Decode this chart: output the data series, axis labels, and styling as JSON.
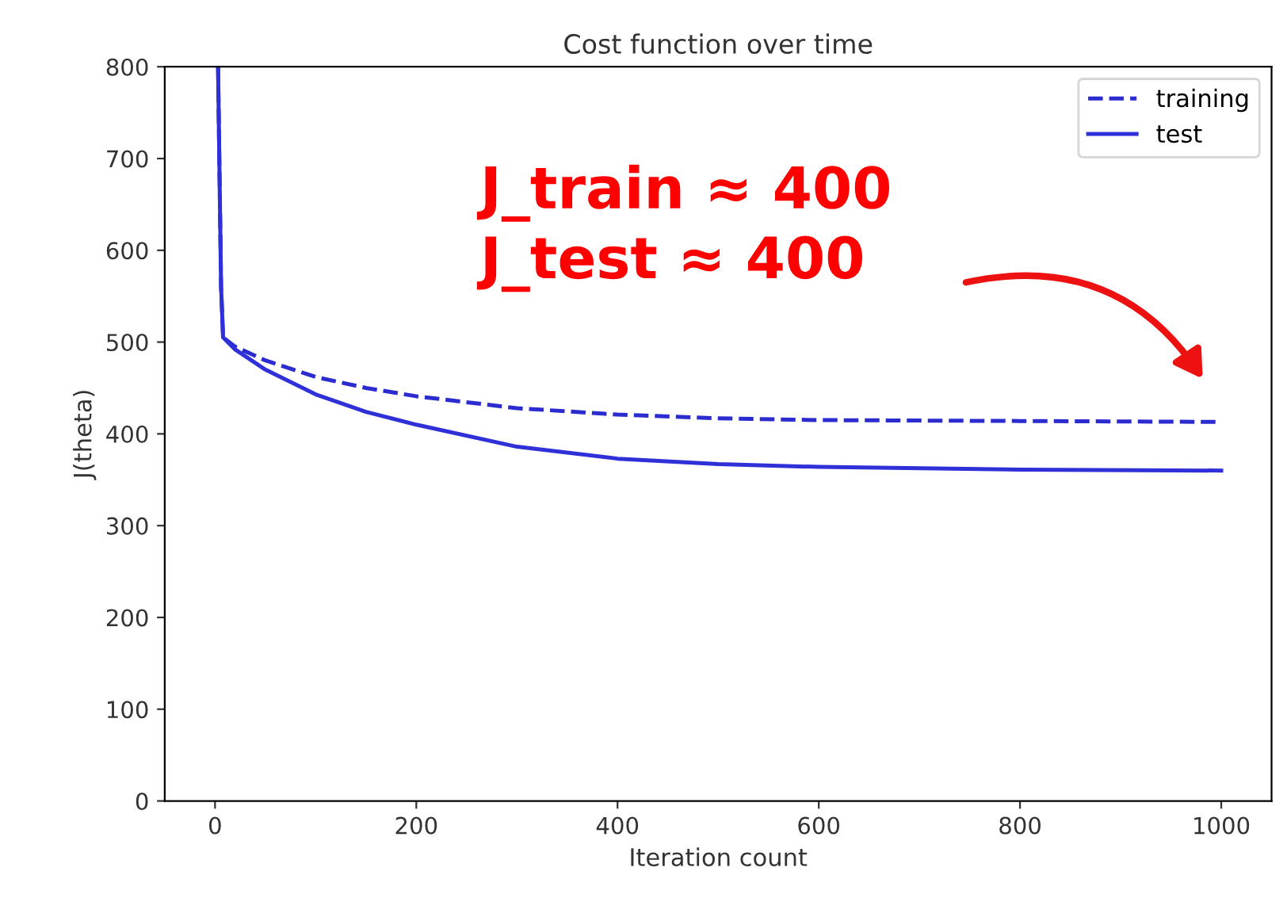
{
  "chart_data": {
    "type": "line",
    "title": "Cost function over time",
    "xlabel": "Iteration count",
    "ylabel": "J(theta)",
    "xlim": [
      -50,
      1050
    ],
    "ylim": [
      0,
      800
    ],
    "xticks": [
      0,
      200,
      400,
      600,
      800,
      1000
    ],
    "yticks": [
      0,
      100,
      200,
      300,
      400,
      500,
      600,
      700,
      800
    ],
    "grid": false,
    "legend": "top right",
    "series": [
      {
        "name": "training",
        "color": "#2b2bd0",
        "line_style": "dashed",
        "x": [
          3,
          6,
          8,
          20,
          50,
          100,
          150,
          200,
          300,
          400,
          500,
          600,
          800,
          1000
        ],
        "values": [
          800,
          560,
          505,
          495,
          480,
          462,
          450,
          441,
          428,
          421,
          417,
          415,
          414,
          413
        ]
      },
      {
        "name": "test",
        "color": "#3030d8",
        "line_style": "solid",
        "x": [
          3,
          6,
          8,
          20,
          50,
          100,
          150,
          200,
          300,
          400,
          500,
          600,
          800,
          1000
        ],
        "values": [
          800,
          560,
          505,
          492,
          470,
          443,
          424,
          410,
          386,
          373,
          367,
          364,
          361,
          360
        ]
      }
    ],
    "annotations": [
      "J_train ≈ 400\nJ_test ≈ 400"
    ]
  }
}
